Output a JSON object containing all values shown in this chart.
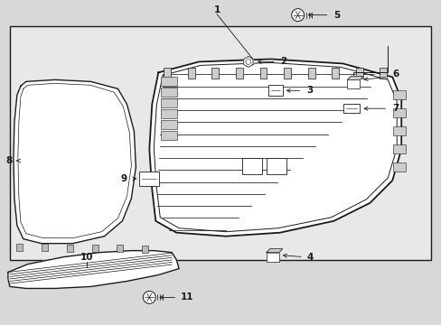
{
  "bg_color": "#d8d8d8",
  "box_bg": "#e8e8e8",
  "line_color": "#1a1a1a",
  "parts": [
    "1",
    "2",
    "3",
    "4",
    "5",
    "6",
    "7",
    "8",
    "9",
    "10",
    "11"
  ]
}
